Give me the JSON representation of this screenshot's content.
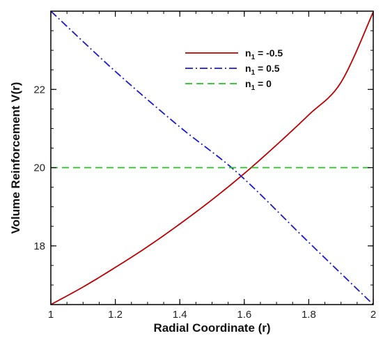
{
  "chart_data": {
    "type": "line",
    "title": "",
    "xlabel": "Radial Coordinate (r)",
    "ylabel": "Volume Reinforcement V(r)",
    "xlim": [
      1,
      2
    ],
    "ylim": [
      16.5,
      24
    ],
    "x_ticks": [
      1,
      1.2,
      1.4,
      1.6,
      1.8,
      2
    ],
    "x_tick_labels": [
      "1",
      "1.2",
      "1.4",
      "1.6",
      "1.8",
      "2"
    ],
    "y_ticks": [
      18,
      20,
      22
    ],
    "y_tick_labels": [
      "18",
      "20",
      "22"
    ],
    "grid": false,
    "legend_position": "top-right",
    "series": [
      {
        "name_main": "n",
        "name_sub": "1",
        "name_rest": " = -0.5",
        "color": "#c00000",
        "dash": "solid",
        "x": [
          1.0,
          1.1,
          1.2,
          1.3,
          1.4,
          1.5,
          1.6,
          1.7,
          1.8,
          1.9,
          2.0
        ],
        "y": [
          16.5,
          16.95,
          17.45,
          17.98,
          18.56,
          19.18,
          19.85,
          20.58,
          21.35,
          22.18,
          23.98
        ]
      },
      {
        "name_main": "n",
        "name_sub": "1",
        "name_rest": " = 0.5",
        "color": "#1a1ad6",
        "dash": "dashdot",
        "x": [
          1.0,
          1.2,
          1.4,
          1.58,
          1.8,
          2.0
        ],
        "y": [
          24.0,
          22.46,
          21.04,
          19.86,
          18.09,
          16.5
        ]
      },
      {
        "name_main": "n",
        "name_sub": "1",
        "name_rest": " = 0",
        "color": "#22c422",
        "dash": "dashed",
        "x": [
          1.0,
          2.0
        ],
        "y": [
          20.0,
          20.0
        ]
      }
    ]
  }
}
